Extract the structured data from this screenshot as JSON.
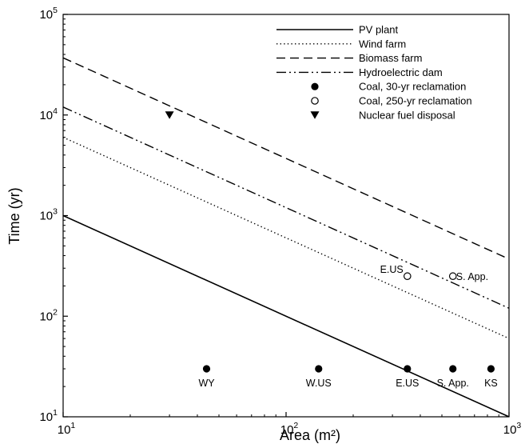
{
  "chart_data": {
    "type": "line",
    "xlabel": "Area (m²)",
    "ylabel": "Time (yr)",
    "xscale": "log",
    "yscale": "log",
    "xlim": [
      10,
      1000
    ],
    "ylim": [
      10,
      100000
    ],
    "grid": false,
    "legend_position": "top-right",
    "x_ticks": [
      {
        "value": 10,
        "base": "10",
        "exp": "1"
      },
      {
        "value": 100,
        "base": "10",
        "exp": "2"
      },
      {
        "value": 1000,
        "base": "10",
        "exp": "3"
      }
    ],
    "y_ticks": [
      {
        "value": 10,
        "base": "10",
        "exp": "1"
      },
      {
        "value": 100,
        "base": "10",
        "exp": "2"
      },
      {
        "value": 1000,
        "base": "10",
        "exp": "3"
      },
      {
        "value": 10000,
        "base": "10",
        "exp": "4"
      },
      {
        "value": 100000,
        "base": "10",
        "exp": "5"
      }
    ],
    "series": [
      {
        "name": "PV plant",
        "style": "solid",
        "x": [
          10,
          1000
        ],
        "y": [
          1000,
          10
        ]
      },
      {
        "name": "Wind farm",
        "style": "dotted",
        "x": [
          10,
          1000
        ],
        "y": [
          6000,
          60
        ]
      },
      {
        "name": "Biomass farm",
        "style": "dashed",
        "x": [
          10,
          1000
        ],
        "y": [
          37000,
          370
        ]
      },
      {
        "name": "Hydroelectric dam",
        "style": "dashdotdot",
        "x": [
          10,
          1000
        ],
        "y": [
          12000,
          120
        ]
      },
      {
        "name": "Coal, 30-yr reclamation",
        "style": "marker-filled-circle",
        "points": [
          {
            "x": 44,
            "y": 30,
            "label": "WY"
          },
          {
            "x": 140,
            "y": 30,
            "label": "W.US"
          },
          {
            "x": 350,
            "y": 30,
            "label": "E.US"
          },
          {
            "x": 560,
            "y": 30,
            "label": "S. App."
          },
          {
            "x": 830,
            "y": 30,
            "label": "KS"
          }
        ]
      },
      {
        "name": "Coal, 250-yr reclamation",
        "style": "marker-open-circle",
        "points": [
          {
            "x": 350,
            "y": 250,
            "label": "E.US"
          },
          {
            "x": 560,
            "y": 250,
            "label": "S. App."
          }
        ]
      },
      {
        "name": "Nuclear fuel disposal",
        "style": "marker-triangle-down",
        "points": [
          {
            "x": 30,
            "y": 10000,
            "label": ""
          }
        ]
      }
    ]
  }
}
